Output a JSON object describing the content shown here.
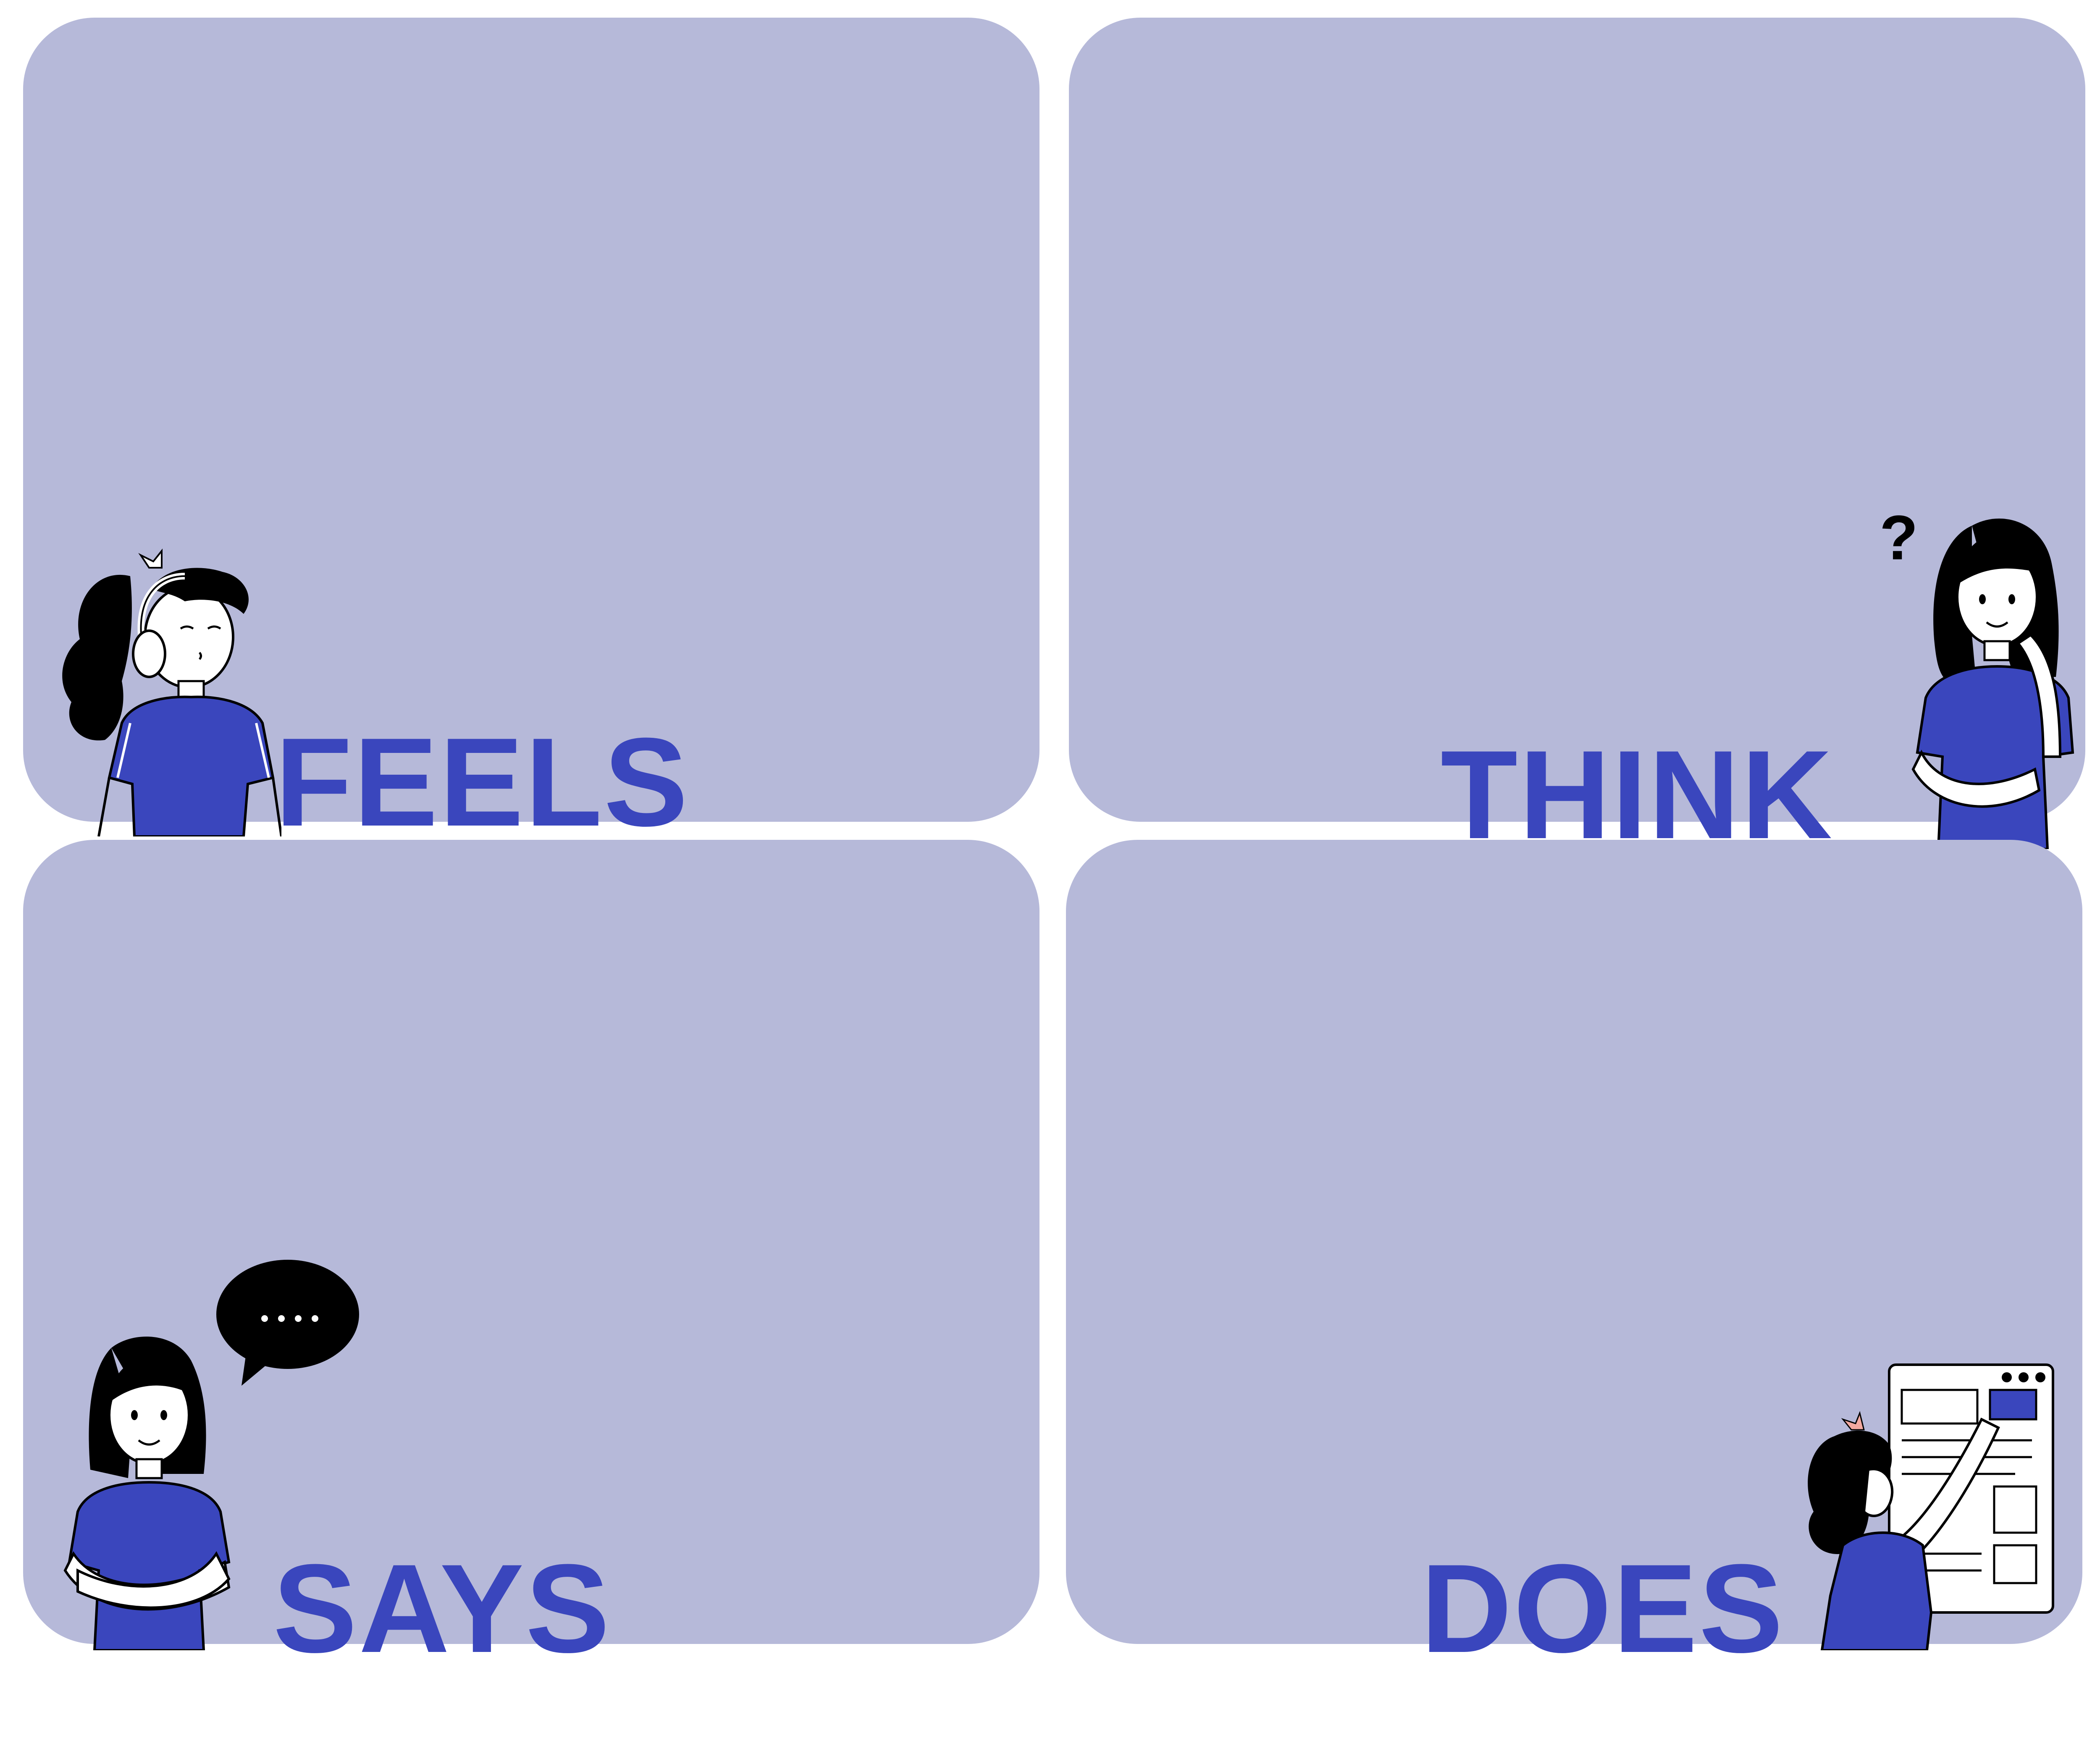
{
  "colors": {
    "panel": "#b6b9d9",
    "accent_blue": "#3a46bd",
    "ink": "#000000",
    "skin": "#ffffff",
    "bow": "#f3a9a0"
  },
  "quadrants": [
    {
      "id": "feels",
      "label": "FEELS",
      "icon": "woman-with-headphones-icon"
    },
    {
      "id": "think",
      "label": "THINK",
      "icon": "thinking-woman-question-mark-icon"
    },
    {
      "id": "says",
      "label": "SAYS",
      "icon": "woman-with-speech-bubble-icon"
    },
    {
      "id": "does",
      "label": "DOES",
      "icon": "woman-pointing-at-board-icon"
    }
  ]
}
